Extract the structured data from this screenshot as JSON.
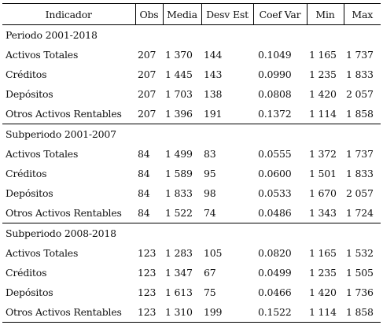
{
  "headers": {
    "indicador": "Indicador",
    "obs": "Obs",
    "media": "Media",
    "desv": "Desv Est",
    "coef": "Coef Var",
    "min": "Min",
    "max": "Max"
  },
  "periods": [
    {
      "title": "Periodo 2001-2018",
      "rows": [
        {
          "indicador": "Activos Totales",
          "obs": "207",
          "media": "1 370",
          "desv": "144",
          "coef": "0.1049",
          "min": "1 165",
          "max": "1 737"
        },
        {
          "indicador": "Créditos",
          "obs": "207",
          "media": "1 445",
          "desv": "143",
          "coef": "0.0990",
          "min": "1 235",
          "max": "1 833"
        },
        {
          "indicador": "Depósitos",
          "obs": "207",
          "media": "1 703",
          "desv": "138",
          "coef": "0.0808",
          "min": "1 420",
          "max": "2 057"
        },
        {
          "indicador": "Otros Activos Rentables",
          "obs": "207",
          "media": "1 396",
          "desv": "191",
          "coef": "0.1372",
          "min": "1 114",
          "max": "1 858"
        }
      ]
    },
    {
      "title": "Subperiodo 2001-2007",
      "rows": [
        {
          "indicador": "Activos Totales",
          "obs": "84",
          "media": "1 499",
          "desv": "83",
          "coef": "0.0555",
          "min": "1 372",
          "max": "1 737"
        },
        {
          "indicador": "Créditos",
          "obs": "84",
          "media": "1 589",
          "desv": "95",
          "coef": "0.0600",
          "min": "1 501",
          "max": "1 833"
        },
        {
          "indicador": "Depósitos",
          "obs": "84",
          "media": "1 833",
          "desv": "98",
          "coef": "0.0533",
          "min": "1 670",
          "max": "2 057"
        },
        {
          "indicador": "Otros Activos Rentables",
          "obs": "84",
          "media": "1 522",
          "desv": "74",
          "coef": "0.0486",
          "min": "1 343",
          "max": "1 724"
        }
      ]
    },
    {
      "title": "Subperiodo 2008-2018",
      "rows": [
        {
          "indicador": "Activos Totales",
          "obs": "123",
          "media": "1 283",
          "desv": "105",
          "coef": "0.0820",
          "min": "1 165",
          "max": "1 532"
        },
        {
          "indicador": "Créditos",
          "obs": "123",
          "media": "1 347",
          "desv": "67",
          "coef": "0.0499",
          "min": "1 235",
          "max": "1 505"
        },
        {
          "indicador": "Depósitos",
          "obs": "123",
          "media": "1 613",
          "desv": "75",
          "coef": "0.0466",
          "min": "1 420",
          "max": "1 736"
        },
        {
          "indicador": "Otros Activos Rentables",
          "obs": "123",
          "media": "1 310",
          "desv": "199",
          "coef": "0.1522",
          "min": "1 114",
          "max": "1 858"
        }
      ]
    }
  ]
}
